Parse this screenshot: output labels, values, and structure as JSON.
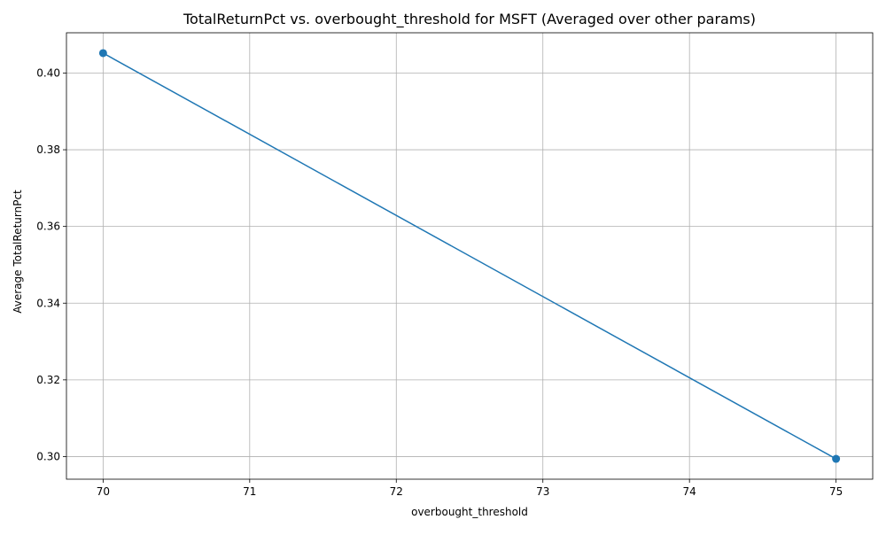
{
  "chart_data": {
    "type": "line",
    "title": "TotalReturnPct vs. overbought_threshold for MSFT (Averaged over other params)",
    "xlabel": "overbought_threshold",
    "ylabel": "Average TotalReturnPct",
    "x": [
      70,
      75
    ],
    "series": [
      {
        "values": [
          0.4052,
          0.2994
        ],
        "color": "#1f77b4",
        "marker": "circle"
      }
    ],
    "xlim": [
      69.75,
      75.25
    ],
    "ylim": [
      0.2941,
      0.4105
    ],
    "xticks": [
      70,
      71,
      72,
      73,
      74,
      75
    ],
    "yticks": [
      0.3,
      0.32,
      0.34,
      0.36,
      0.38,
      0.4
    ],
    "xtick_labels": [
      "70",
      "71",
      "72",
      "73",
      "74",
      "75"
    ],
    "ytick_labels": [
      "0.30",
      "0.32",
      "0.34",
      "0.36",
      "0.38",
      "0.40"
    ],
    "grid": true,
    "legend": "none"
  }
}
